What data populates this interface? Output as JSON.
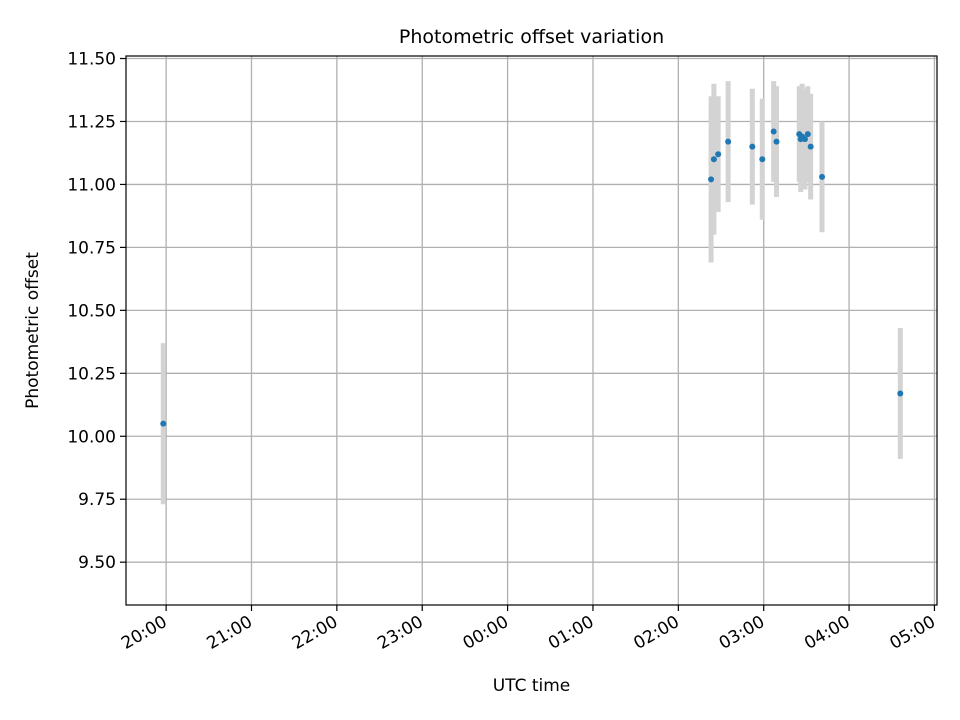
{
  "chart_data": {
    "type": "scatter",
    "title": "Photometric offset variation",
    "xlabel": "UTC time",
    "ylabel": "Photometric offset",
    "x_ticks": [
      "20:00",
      "21:00",
      "22:00",
      "23:00",
      "00:00",
      "01:00",
      "02:00",
      "03:00",
      "04:00",
      "05:00"
    ],
    "x_tick_hours": [
      0,
      1,
      2,
      3,
      4,
      5,
      6,
      7,
      8,
      9
    ],
    "xlim_hours": [
      -0.47,
      9.03
    ],
    "y_ticks": [
      "9.50",
      "9.75",
      "10.00",
      "10.25",
      "10.50",
      "10.75",
      "11.00",
      "11.25",
      "11.50"
    ],
    "y_tick_values": [
      9.5,
      9.75,
      10.0,
      10.25,
      10.5,
      10.75,
      11.0,
      11.25,
      11.5
    ],
    "ylim": [
      9.33,
      11.51
    ],
    "grid": true,
    "colors": {
      "marker": "#1f77b4",
      "errorbar": "#d3d3d3",
      "grid": "#b0b0b0"
    },
    "points": [
      {
        "time": "19:58",
        "y": 10.05,
        "yerr": 0.32
      },
      {
        "time": "02:23",
        "y": 11.02,
        "yerr": 0.33
      },
      {
        "time": "02:25",
        "y": 11.1,
        "yerr": 0.3
      },
      {
        "time": "02:28",
        "y": 11.12,
        "yerr": 0.23
      },
      {
        "time": "02:35",
        "y": 11.17,
        "yerr": 0.24
      },
      {
        "time": "02:52",
        "y": 11.15,
        "yerr": 0.23
      },
      {
        "time": "02:59",
        "y": 11.1,
        "yerr": 0.24
      },
      {
        "time": "03:07",
        "y": 11.21,
        "yerr": 0.2
      },
      {
        "time": "03:09",
        "y": 11.17,
        "yerr": 0.22
      },
      {
        "time": "03:25",
        "y": 11.2,
        "yerr": 0.19
      },
      {
        "time": "03:26",
        "y": 11.18,
        "yerr": 0.21
      },
      {
        "time": "03:27",
        "y": 11.19,
        "yerr": 0.21
      },
      {
        "time": "03:29",
        "y": 11.18,
        "yerr": 0.2
      },
      {
        "time": "03:31",
        "y": 11.2,
        "yerr": 0.19
      },
      {
        "time": "03:33",
        "y": 11.15,
        "yerr": 0.21
      },
      {
        "time": "03:41",
        "y": 11.03,
        "yerr": 0.22
      },
      {
        "time": "04:36",
        "y": 10.17,
        "yerr": 0.26
      }
    ]
  }
}
